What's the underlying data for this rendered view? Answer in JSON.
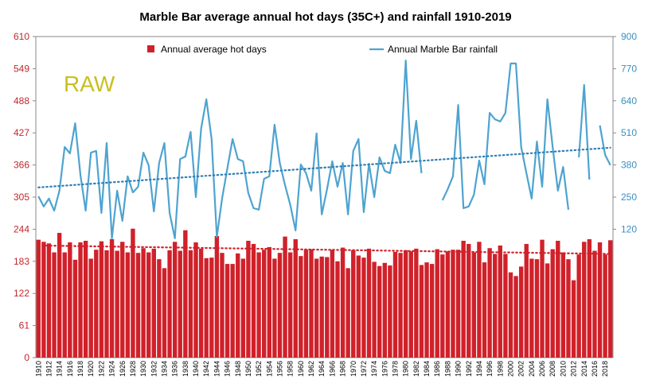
{
  "chart_data": {
    "type": "bar_line",
    "title": "Marble Bar average annual hot days (35C+) and rainfall 1910-2019",
    "annotation": "RAW",
    "categories": [
      "1910",
      null,
      "1912",
      null,
      "1914",
      null,
      "1916",
      null,
      "1918",
      null,
      "1920",
      null,
      "1922",
      null,
      "1924",
      null,
      "1926",
      null,
      "1928",
      null,
      "1930",
      null,
      "1932",
      null,
      "1934",
      null,
      "1936",
      null,
      "1938",
      null,
      "1940",
      null,
      "1942",
      null,
      "1944",
      null,
      "1946",
      null,
      "1948",
      null,
      "1950",
      null,
      "1952",
      null,
      "1954",
      null,
      "1956",
      null,
      "1958",
      null,
      "1960",
      null,
      "1962",
      null,
      "1964",
      null,
      "1966",
      null,
      "1968",
      null,
      "1970",
      null,
      "1972",
      null,
      "1974",
      null,
      "1976",
      null,
      "1978",
      null,
      "1980",
      null,
      "1982",
      null,
      "1984",
      null,
      "1986",
      null,
      "1988",
      null,
      "1990",
      null,
      "1992",
      null,
      "1994",
      null,
      "1996",
      null,
      "1998",
      null,
      "2000",
      null,
      "2002",
      null,
      "2004",
      null,
      "2006",
      null,
      "2008",
      null,
      "2010",
      null,
      "2012",
      null,
      "2014",
      null,
      "2016",
      null,
      "2018",
      null
    ],
    "series": [
      {
        "name": "Annual average hot days",
        "type": "bar",
        "color": "#d0212a",
        "axis": "y",
        "values": [
          224,
          220,
          217,
          200,
          237,
          200,
          219,
          186,
          219,
          222,
          188,
          205,
          221,
          204,
          225,
          203,
          220,
          200,
          245,
          199,
          208,
          200,
          207,
          187,
          170,
          204,
          220,
          203,
          242,
          204,
          219,
          207,
          189,
          190,
          231,
          199,
          178,
          178,
          198,
          188,
          222,
          216,
          200,
          205,
          210,
          188,
          199,
          230,
          200,
          225,
          193,
          205,
          206,
          188,
          192,
          191,
          205,
          183,
          209,
          170,
          204,
          194,
          190,
          207,
          182,
          174,
          180,
          175,
          201,
          199,
          204,
          202,
          207,
          176,
          181,
          178,
          206,
          196,
          202,
          205,
          205,
          222,
          216,
          200,
          220,
          181,
          208,
          197,
          213,
          197,
          162,
          155,
          173,
          216,
          188,
          187,
          224,
          179,
          206,
          222,
          200,
          187,
          147,
          196,
          220,
          225,
          203,
          219,
          196,
          223
        ]
      },
      {
        "name": "Annual Marble Bar rainfall",
        "type": "line",
        "color": "#4ea3d0",
        "axis": "y2",
        "values": [
          253,
          212,
          244,
          195,
          276,
          453,
          427,
          549,
          340,
          195,
          430,
          437,
          186,
          469,
          83,
          276,
          154,
          334,
          269,
          292,
          430,
          379,
          192,
          388,
          469,
          186,
          83,
          404,
          414,
          514,
          250,
          527,
          646,
          485,
          89,
          244,
          366,
          485,
          404,
          395,
          266,
          205,
          199,
          324,
          334,
          543,
          388,
          298,
          218,
          115,
          382,
          347,
          276,
          508,
          180,
          282,
          395,
          292,
          388,
          180,
          437,
          485,
          189,
          385,
          250,
          411,
          356,
          347,
          462,
          388,
          803,
          404,
          559,
          347,
          null,
          null,
          null,
          237,
          282,
          334,
          623,
          205,
          212,
          260,
          398,
          302,
          591,
          565,
          556,
          591,
          791,
          791,
          453,
          347,
          244,
          475,
          292,
          646,
          453,
          276,
          372,
          199,
          null,
          411,
          704,
          321,
          null,
          540,
          421,
          379
        ]
      }
    ],
    "trends": [
      {
        "axis": "y",
        "color": "#d0212a",
        "values": [
          213,
          197
        ]
      },
      {
        "axis": "y2",
        "color": "#2f7fb5",
        "values": [
          289,
          450
        ]
      }
    ],
    "ylim": [
      0,
      610
    ],
    "yticks": [
      0,
      61,
      122,
      183,
      244,
      305,
      366,
      427,
      488,
      549,
      610
    ],
    "y2lim": [
      -400,
      900
    ],
    "y2ticks": [
      120,
      250,
      380,
      510,
      640,
      770,
      900
    ]
  }
}
